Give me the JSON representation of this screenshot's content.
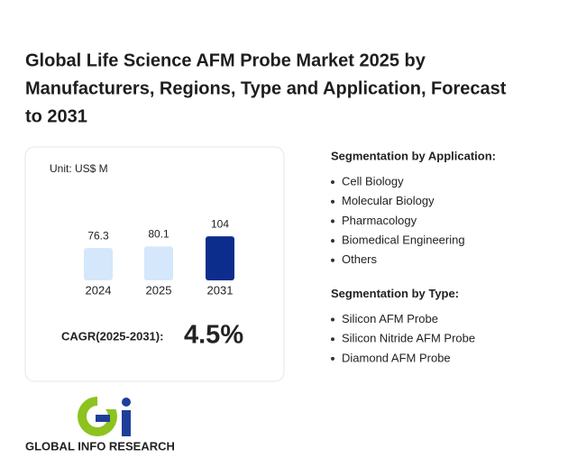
{
  "header": {
    "title_lines": [
      "Global Life Science AFM Probe Market 2025 by",
      "Manufacturers, Regions, Type and Application, Forecast",
      "to 2031"
    ]
  },
  "chart_data": {
    "type": "bar",
    "unit": "Unit: US$ M",
    "categories": [
      "2024",
      "2025",
      "2031"
    ],
    "values": [
      76.3,
      80.1,
      104
    ],
    "colors": [
      "#d4e7fb",
      "#d4e7fb",
      "#0d2d8c"
    ]
  },
  "cagr": {
    "label": "CAGR(2025-2031):",
    "value": "4.5%"
  },
  "segments": [
    {
      "heading": "Segmentation by Application:",
      "items": [
        "Cell Biology",
        "Molecular Biology",
        "Pharmacology",
        "Biomedical Engineering",
        "Others"
      ]
    },
    {
      "heading": "Segmentation by Type:",
      "items": [
        "Silicon AFM Probe",
        "Silicon Nitride AFM Probe",
        "Diamond AFM Probe"
      ]
    }
  ],
  "logo": {
    "text": "GLOBAL INFO RESEARCH"
  }
}
